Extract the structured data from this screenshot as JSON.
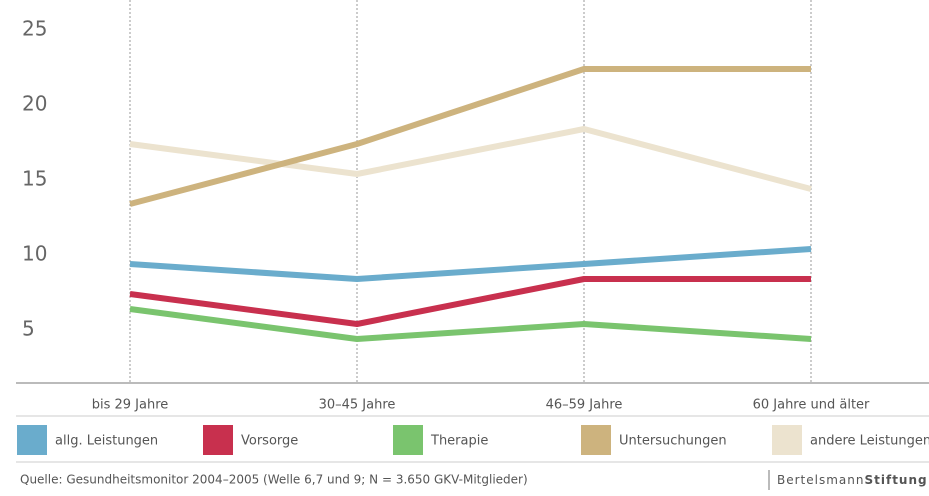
{
  "chart_data": {
    "type": "line",
    "categories": [
      "bis 29 Jahre",
      "30–45 Jahre",
      "46–59 Jahre",
      "60 Jahre und älter"
    ],
    "series": [
      {
        "name": "allg. Leistungen",
        "color": "#6aaccc",
        "values": [
          9,
          8,
          9,
          10
        ]
      },
      {
        "name": "Vorsorge",
        "color": "#c8304e",
        "values": [
          7,
          5,
          8,
          8
        ]
      },
      {
        "name": "Therapie",
        "color": "#7ac46e",
        "values": [
          6,
          4,
          5,
          4
        ]
      },
      {
        "name": "Untersuchungen",
        "color": "#cdb37e",
        "values": [
          13,
          17,
          22,
          22
        ]
      },
      {
        "name": "andere Leistungen",
        "color": "#ece3cf",
        "values": [
          17,
          15,
          18,
          14
        ]
      }
    ],
    "ylim": [
      1,
      26
    ],
    "yticks": [
      5,
      10,
      15,
      20,
      25
    ],
    "source": "Quelle: Gesundheitsmonitor 2004–2005 (Welle 6,7 und 9; N = 3.650 GKV-Mitglieder)",
    "logo": {
      "part1": "Bertelsmann",
      "part2": "Stiftung"
    }
  }
}
